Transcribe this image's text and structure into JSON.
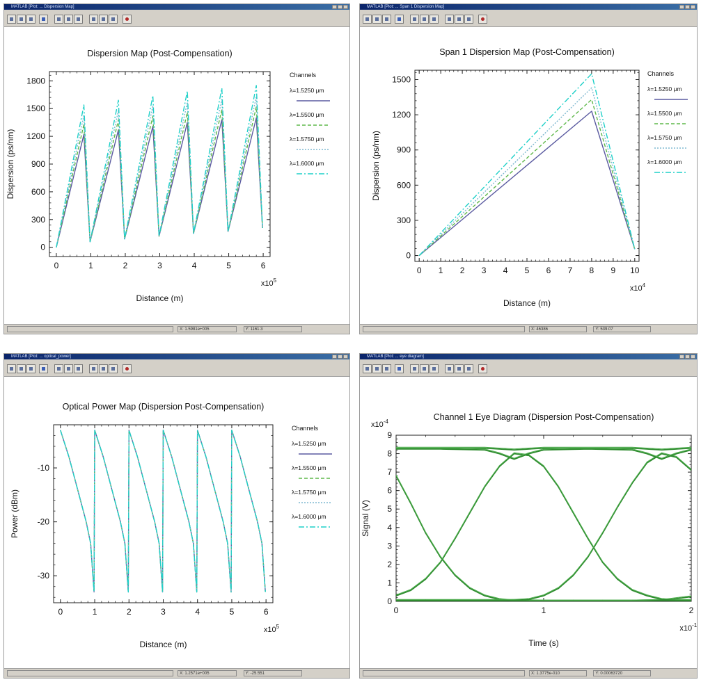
{
  "windows": [
    {
      "app": "MATLAB",
      "title": "[Plot: ... Dispersion Map]",
      "status_x": "X: 1.5981e+005",
      "status_y": "Y: 1161.3",
      "chart_data": {
        "type": "line",
        "title": "Dispersion Map (Post-Compensation)",
        "xlabel": "Distance (m)",
        "ylabel": "Dispersion (ps/nm)",
        "xscale_label": "x10",
        "xscale_exp": "5",
        "xlim": [
          -0.2,
          6.2
        ],
        "ylim": [
          -100,
          1900
        ],
        "xticks": [
          0,
          1,
          2,
          3,
          4,
          5,
          6
        ],
        "yticks": [
          0,
          300,
          600,
          900,
          1200,
          1500,
          1800
        ],
        "grid": false,
        "legend_title": "Channels",
        "legend_placement": "right",
        "series": [
          {
            "name": "λ=1.5250 μm",
            "color": "#5a5aa0",
            "dash": "",
            "x": [
              0,
              0.8,
              0.98,
              1.8,
              1.98,
              2.8,
              2.98,
              3.8,
              3.98,
              4.8,
              4.98,
              5.8,
              5.98
            ],
            "y": [
              0,
              1220,
              60,
              1270,
              90,
              1310,
              120,
              1350,
              150,
              1380,
              170,
              1400,
              210
            ]
          },
          {
            "name": "λ=1.5500 μm",
            "color": "#5fb84a",
            "dash": "5,3",
            "x": [
              0,
              0.8,
              0.98,
              1.8,
              1.98,
              2.8,
              2.98,
              3.8,
              3.98,
              4.8,
              4.98,
              5.8,
              5.98
            ],
            "y": [
              0,
              1330,
              60,
              1380,
              90,
              1420,
              120,
              1460,
              150,
              1490,
              170,
              1520,
              210
            ]
          },
          {
            "name": "λ=1.5750 μm",
            "color": "#7fb8d0",
            "dash": "2,2",
            "x": [
              0,
              0.8,
              0.98,
              1.8,
              1.98,
              2.8,
              2.98,
              3.8,
              3.98,
              4.8,
              4.98,
              5.8,
              5.98
            ],
            "y": [
              0,
              1430,
              60,
              1480,
              90,
              1530,
              120,
              1570,
              150,
              1600,
              170,
              1630,
              210
            ]
          },
          {
            "name": "λ=1.6000 μm",
            "color": "#1fd0c8",
            "dash": "8,3,2,3",
            "x": [
              0,
              0.8,
              0.98,
              1.8,
              1.98,
              2.8,
              2.98,
              3.8,
              3.98,
              4.8,
              4.98,
              5.8,
              5.98
            ],
            "y": [
              0,
              1540,
              60,
              1590,
              90,
              1640,
              120,
              1690,
              150,
              1720,
              170,
              1750,
              210
            ]
          }
        ]
      }
    },
    {
      "app": "MATLAB",
      "title": "[Plot: ... Span 1 Dispersion Map]",
      "status_x": "X: 46386",
      "status_y": "Y: 539.07",
      "chart_data": {
        "type": "line",
        "title": "Span 1 Dispersion Map (Post-Compensation)",
        "xlabel": "Distance (m)",
        "ylabel": "Dispersion (ps/nm)",
        "xscale_label": "x10",
        "xscale_exp": "4",
        "xlim": [
          -0.2,
          10.2
        ],
        "ylim": [
          -50,
          1580
        ],
        "xticks": [
          0,
          1,
          2,
          3,
          4,
          5,
          6,
          7,
          8,
          9,
          10
        ],
        "yticks": [
          0,
          300,
          600,
          900,
          1200,
          1500
        ],
        "grid": false,
        "legend_title": "Channels",
        "legend_placement": "right",
        "series": [
          {
            "name": "λ=1.5250 μm",
            "color": "#5a5aa0",
            "dash": "",
            "x": [
              0,
              8,
              10
            ],
            "y": [
              0,
              1230,
              55
            ]
          },
          {
            "name": "λ=1.5500 μm",
            "color": "#5fb84a",
            "dash": "5,3",
            "x": [
              0,
              8,
              10
            ],
            "y": [
              0,
              1330,
              55
            ]
          },
          {
            "name": "λ=1.5750 μm",
            "color": "#7fb8d0",
            "dash": "2,2",
            "x": [
              0,
              8,
              10
            ],
            "y": [
              0,
              1430,
              55
            ]
          },
          {
            "name": "λ=1.6000 μm",
            "color": "#1fd0c8",
            "dash": "8,3,2,3",
            "x": [
              0,
              8,
              10
            ],
            "y": [
              0,
              1550,
              55
            ]
          }
        ]
      }
    },
    {
      "app": "MATLAB",
      "title": "[Plot: ... optical_power]",
      "status_x": "X: 1.2571e+005",
      "status_y": "Y: -25.551",
      "chart_data": {
        "type": "line",
        "title": "Optical Power Map (Dispersion Post-Compensation)",
        "xlabel": "Distance (m)",
        "ylabel": "Power (dBm)",
        "xscale_label": "x10",
        "xscale_exp": "5",
        "xlim": [
          -0.2,
          6.2
        ],
        "ylim": [
          -35,
          -2
        ],
        "xticks": [
          0,
          1,
          2,
          3,
          4,
          5,
          6
        ],
        "yticks": [
          -10,
          -20,
          -30
        ],
        "grid": false,
        "legend_title": "Channels",
        "legend_placement": "right",
        "series": [
          {
            "name": "λ=1.5250 μm",
            "color": "#5a5aa0",
            "dash": "",
            "x": [
              0,
              0.25,
              0.5,
              0.75,
              0.88,
              0.98,
              1.0,
              1.25,
              1.5,
              1.75,
              1.88,
              1.98,
              2.0,
              2.25,
              2.5,
              2.75,
              2.88,
              2.98,
              3.0,
              3.25,
              3.5,
              3.75,
              3.88,
              3.98,
              4.0,
              4.25,
              4.5,
              4.75,
              4.88,
              4.98,
              5.0,
              5.25,
              5.5,
              5.75,
              5.88,
              5.98
            ],
            "y": [
              -3,
              -8,
              -14,
              -20,
              -24,
              -33,
              -3,
              -8,
              -14,
              -20,
              -24,
              -33,
              -3,
              -8,
              -14,
              -20,
              -24,
              -33,
              -3,
              -8,
              -14,
              -20,
              -24,
              -33,
              -3,
              -8,
              -14,
              -20,
              -24,
              -33,
              -3,
              -8,
              -14,
              -20,
              -24,
              -33
            ]
          },
          {
            "name": "λ=1.5500 μm",
            "color": "#5fb84a",
            "dash": "5,3",
            "x": [
              0,
              0.25,
              0.5,
              0.75,
              0.88,
              0.98,
              1.0,
              1.25,
              1.5,
              1.75,
              1.88,
              1.98,
              2.0,
              2.25,
              2.5,
              2.75,
              2.88,
              2.98,
              3.0,
              3.25,
              3.5,
              3.75,
              3.88,
              3.98,
              4.0,
              4.25,
              4.5,
              4.75,
              4.88,
              4.98,
              5.0,
              5.25,
              5.5,
              5.75,
              5.88,
              5.98
            ],
            "y": [
              -3,
              -8,
              -14,
              -20,
              -24,
              -33,
              -3,
              -8,
              -14,
              -20,
              -24,
              -33,
              -3,
              -8,
              -14,
              -20,
              -24,
              -33,
              -3,
              -8,
              -14,
              -20,
              -24,
              -33,
              -3,
              -8,
              -14,
              -20,
              -24,
              -33,
              -3,
              -8,
              -14,
              -20,
              -24,
              -33
            ]
          },
          {
            "name": "λ=1.5750 μm",
            "color": "#7fb8d0",
            "dash": "2,2",
            "x": [
              0,
              0.25,
              0.5,
              0.75,
              0.88,
              0.98,
              1.0,
              1.25,
              1.5,
              1.75,
              1.88,
              1.98,
              2.0,
              2.25,
              2.5,
              2.75,
              2.88,
              2.98,
              3.0,
              3.25,
              3.5,
              3.75,
              3.88,
              3.98,
              4.0,
              4.25,
              4.5,
              4.75,
              4.88,
              4.98,
              5.0,
              5.25,
              5.5,
              5.75,
              5.88,
              5.98
            ],
            "y": [
              -3,
              -8,
              -14,
              -20,
              -24,
              -33,
              -3,
              -8,
              -14,
              -20,
              -24,
              -33,
              -3,
              -8,
              -14,
              -20,
              -24,
              -33,
              -3,
              -8,
              -14,
              -20,
              -24,
              -33,
              -3,
              -8,
              -14,
              -20,
              -24,
              -33,
              -3,
              -8,
              -14,
              -20,
              -24,
              -33
            ]
          },
          {
            "name": "λ=1.6000 μm",
            "color": "#1fd0c8",
            "dash": "8,3,2,3",
            "x": [
              0,
              0.25,
              0.5,
              0.75,
              0.88,
              0.98,
              1.0,
              1.25,
              1.5,
              1.75,
              1.88,
              1.98,
              2.0,
              2.25,
              2.5,
              2.75,
              2.88,
              2.98,
              3.0,
              3.25,
              3.5,
              3.75,
              3.88,
              3.98,
              4.0,
              4.25,
              4.5,
              4.75,
              4.88,
              4.98,
              5.0,
              5.25,
              5.5,
              5.75,
              5.88,
              5.98
            ],
            "y": [
              -3,
              -8,
              -14,
              -20,
              -24,
              -33,
              -3,
              -8,
              -14,
              -20,
              -24,
              -33,
              -3,
              -8,
              -14,
              -20,
              -24,
              -33,
              -3,
              -8,
              -14,
              -20,
              -24,
              -33,
              -3,
              -8,
              -14,
              -20,
              -24,
              -33,
              -3,
              -8,
              -14,
              -20,
              -24,
              -33
            ]
          }
        ]
      }
    },
    {
      "app": "MATLAB",
      "title": "[Plot: ... eye diagram]",
      "status_x": "X: 1.3775e-010",
      "status_y": "Y: 0.00063720",
      "chart_data": {
        "type": "line",
        "title": "Channel 1 Eye Diagram (Dispersion Post-Compensation)",
        "xlabel": "Time (s)",
        "ylabel": "Signal (V)",
        "xscale_label": "x10",
        "xscale_exp": "-10",
        "yscale_label": "x10",
        "yscale_exp": "-4",
        "xlim": [
          0,
          2
        ],
        "ylim": [
          0,
          9
        ],
        "xticks": [
          0,
          1,
          2
        ],
        "yticks": [
          0,
          1,
          2,
          3,
          4,
          5,
          6,
          7,
          8,
          9
        ],
        "grid": false,
        "legend_title": "",
        "legend_placement": "none",
        "series": [
          {
            "name": "",
            "color": "#2e8b2e",
            "dash": "",
            "x": [
              0,
              0.2,
              0.4,
              0.6,
              0.8,
              1.0,
              1.2,
              1.4,
              1.6,
              1.8,
              2.0
            ],
            "y": [
              8.3,
              8.3,
              8.3,
              8.3,
              8.2,
              8.3,
              8.3,
              8.3,
              8.3,
              8.2,
              8.3
            ]
          },
          {
            "name": "",
            "color": "#2e8b2e",
            "dash": "",
            "x": [
              0,
              0.2,
              0.4,
              0.6,
              0.8,
              1.0,
              1.2,
              1.4,
              1.6,
              1.8,
              2.0
            ],
            "y": [
              0.02,
              0.02,
              0.02,
              0.02,
              0.05,
              0.02,
              0.02,
              0.02,
              0.02,
              0.05,
              0.02
            ]
          },
          {
            "name": "",
            "color": "#2e8b2e",
            "dash": "",
            "x": [
              0,
              0.1,
              0.2,
              0.3,
              0.4,
              0.5,
              0.6,
              0.7,
              0.8,
              1.0,
              1.2,
              1.4,
              1.6,
              1.8,
              1.9,
              2.0
            ],
            "y": [
              6.8,
              5.3,
              3.7,
              2.4,
              1.4,
              0.7,
              0.3,
              0.1,
              0.02,
              0.02,
              0.02,
              0.02,
              0.02,
              0.05,
              0.15,
              0.25
            ]
          },
          {
            "name": "",
            "color": "#2e8b2e",
            "dash": "",
            "x": [
              0,
              0.1,
              0.2,
              0.3,
              0.4,
              0.5,
              0.6,
              0.7,
              0.8,
              0.9,
              1.0,
              1.1,
              1.2,
              1.3,
              1.4,
              1.5,
              1.6,
              1.7,
              1.8,
              1.9,
              2.0
            ],
            "y": [
              0.3,
              0.6,
              1.2,
              2.1,
              3.4,
              4.8,
              6.2,
              7.3,
              8.0,
              7.9,
              7.3,
              6.2,
              4.8,
              3.4,
              2.1,
              1.2,
              0.6,
              0.3,
              0.1,
              0.05,
              0.05
            ]
          },
          {
            "name": "",
            "color": "#2e8b2e",
            "dash": "",
            "x": [
              0,
              0.2,
              0.4,
              0.6,
              0.8,
              0.9,
              1.0,
              1.1,
              1.2,
              1.3,
              1.4,
              1.5,
              1.6,
              1.7,
              1.8,
              1.9,
              2.0
            ],
            "y": [
              0.05,
              0.05,
              0.05,
              0.05,
              0.05,
              0.1,
              0.3,
              0.7,
              1.4,
              2.4,
              3.7,
              5.1,
              6.4,
              7.5,
              8.0,
              7.8,
              7.1
            ]
          },
          {
            "name": "",
            "color": "#2e8b2e",
            "dash": "",
            "x": [
              0,
              0.3,
              0.6,
              0.7,
              0.8,
              0.9,
              1.0,
              1.3,
              1.6,
              1.7,
              1.8,
              1.9,
              2.0
            ],
            "y": [
              8.25,
              8.25,
              8.2,
              8.0,
              7.7,
              8.0,
              8.2,
              8.25,
              8.2,
              8.0,
              7.7,
              8.0,
              8.2
            ]
          }
        ]
      }
    }
  ]
}
